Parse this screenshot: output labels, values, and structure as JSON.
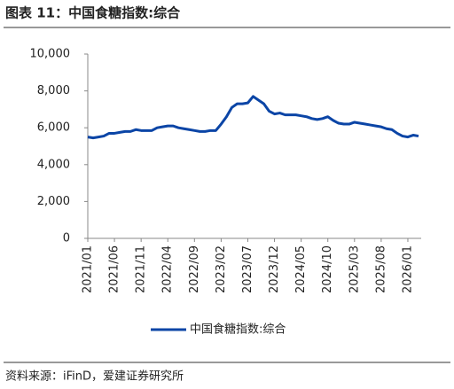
{
  "chart_data": {
    "type": "line",
    "title": "图表 11：中国食糖指数:综合",
    "source": "资料来源：iFinD，爱建证券研究所",
    "x": [
      "2021/01",
      "2021/02",
      "2021/03",
      "2021/04",
      "2021/05",
      "2021/06",
      "2021/07",
      "2021/08",
      "2021/09",
      "2021/10",
      "2021/11",
      "2021/12",
      "2022/01",
      "2022/02",
      "2022/03",
      "2022/04",
      "2022/05",
      "2022/06",
      "2022/07",
      "2022/08",
      "2022/09",
      "2022/10",
      "2022/11",
      "2022/12",
      "2023/01",
      "2023/02",
      "2023/03",
      "2023/04",
      "2023/05",
      "2023/06",
      "2023/07",
      "2023/08",
      "2023/09",
      "2023/10",
      "2023/11",
      "2023/12",
      "2024/01",
      "2024/02",
      "2024/03",
      "2024/04",
      "2024/05",
      "2024/06",
      "2024/07",
      "2024/08",
      "2024/09",
      "2024/10",
      "2024/11",
      "2024/12",
      "2025/01",
      "2025/02",
      "2025/03",
      "2025/04",
      "2025/05",
      "2025/06",
      "2025/07",
      "2025/08",
      "2025/09",
      "2025/10",
      "2025/11",
      "2025/12",
      "2026/01",
      "2026/02",
      "2026/03"
    ],
    "series": [
      {
        "name": "中国食糖指数:综合",
        "color": "#0b45a6",
        "values": [
          5500,
          5450,
          5500,
          5550,
          5700,
          5700,
          5750,
          5800,
          5800,
          5900,
          5850,
          5850,
          5850,
          6000,
          6050,
          6100,
          6100,
          6000,
          5950,
          5900,
          5850,
          5800,
          5800,
          5850,
          5850,
          6200,
          6600,
          7100,
          7300,
          7300,
          7350,
          7700,
          7500,
          7300,
          6900,
          6750,
          6800,
          6700,
          6700,
          6700,
          6650,
          6600,
          6500,
          6450,
          6500,
          6600,
          6400,
          6250,
          6200,
          6200,
          6300,
          6250,
          6200,
          6150,
          6100,
          6050,
          5950,
          5900,
          5700,
          5550,
          5500,
          5600,
          5550
        ]
      }
    ],
    "xticks": [
      "2021/01",
      "2021/06",
      "2021/11",
      "2022/04",
      "2022/09",
      "2023/02",
      "2023/07",
      "2023/12",
      "2024/05",
      "2024/10",
      "2025/03",
      "2025/08",
      "2026/01"
    ],
    "ylim": [
      0,
      10000
    ],
    "yticks": [
      0,
      {
        "value": 2000,
        "label": "2,000"
      },
      {
        "value": 4000,
        "label": "4,000"
      },
      {
        "value": 6000,
        "label": "6,000"
      },
      {
        "value": 8000,
        "label": "8,000"
      },
      {
        "value": 10000,
        "label": "10,000"
      }
    ],
    "grid": false,
    "legend": "bottom"
  }
}
